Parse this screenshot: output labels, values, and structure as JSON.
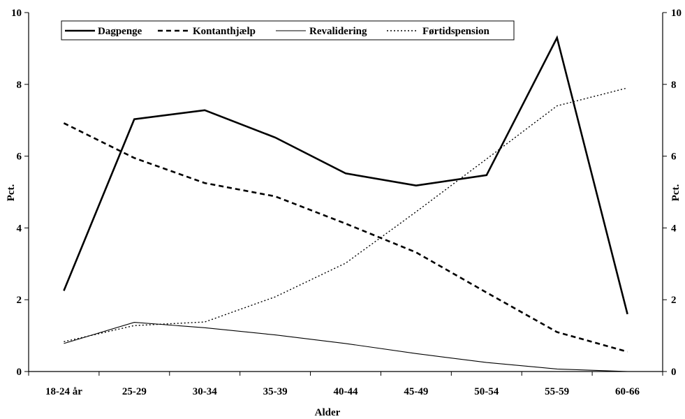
{
  "chart_data": {
    "type": "line",
    "categories": [
      "18-24 år",
      "25-29",
      "30-34",
      "35-39",
      "40-44",
      "45-49",
      "50-54",
      "55-59",
      "60-66"
    ],
    "series": [
      {
        "name": "Dagpenge",
        "values": [
          2.25,
          7.03,
          7.28,
          6.52,
          5.52,
          5.18,
          5.47,
          9.3,
          1.6
        ],
        "style": "solid-thick"
      },
      {
        "name": "Kontanthjælp",
        "values": [
          6.92,
          5.95,
          5.25,
          4.88,
          4.12,
          3.32,
          2.2,
          1.1,
          0.55
        ],
        "style": "dashed"
      },
      {
        "name": "Revalidering",
        "values": [
          0.78,
          1.37,
          1.22,
          1.02,
          0.78,
          0.5,
          0.25,
          0.07,
          0.0
        ],
        "style": "solid-thin"
      },
      {
        "name": "Førtidspension",
        "values": [
          0.83,
          1.28,
          1.38,
          2.08,
          3.02,
          4.45,
          5.92,
          7.4,
          7.9
        ],
        "style": "dotted"
      }
    ],
    "xlabel": "Alder",
    "ylabel_left": "Pct.",
    "ylabel_right": "Pct.",
    "ylim": [
      0,
      10
    ],
    "yticks": [
      0,
      2,
      4,
      6,
      8,
      10
    ],
    "grid": false,
    "legend_position": "top-left",
    "colors": {
      "line": "#000000",
      "background": "#ffffff"
    }
  }
}
